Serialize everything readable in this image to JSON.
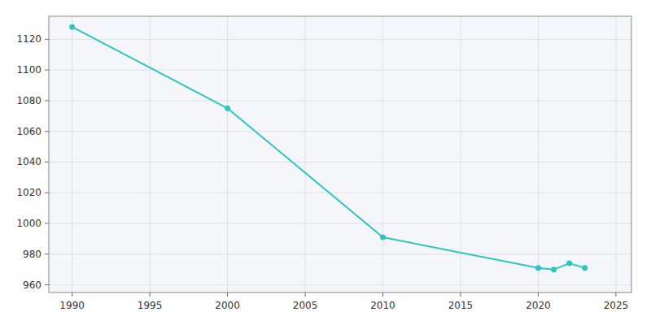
{
  "chart_data": {
    "type": "line",
    "x": [
      1990,
      2000,
      2010,
      2020,
      2021,
      2022,
      2023
    ],
    "values": [
      1128,
      1075,
      991,
      971,
      970,
      974,
      971
    ],
    "color": "#2ec4c4",
    "marker": "circle",
    "xlim": [
      1988.5,
      2026
    ],
    "ylim": [
      955,
      1135
    ],
    "xticks": [
      1990,
      1995,
      2000,
      2005,
      2010,
      2015,
      2020,
      2025
    ],
    "yticks": [
      960,
      980,
      1000,
      1020,
      1040,
      1060,
      1080,
      1100,
      1120
    ],
    "grid": true
  }
}
